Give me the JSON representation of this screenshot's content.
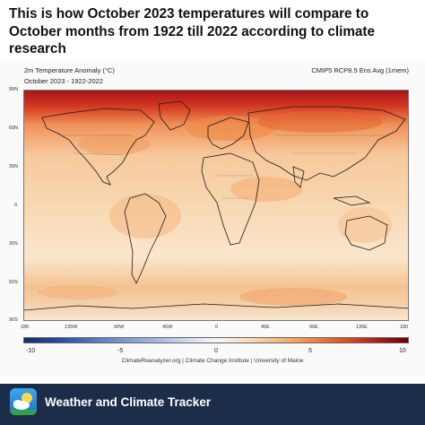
{
  "headline": "This is how October 2023 temperatures will compare to October months from 1922 till 2022 according to climate research",
  "map": {
    "title": "2m Temperature Anomaly (°C)",
    "subtitle": "October 2023 - 1922-2022",
    "model": "CMIP5 RCP8.5 Ens Avg (1mem)",
    "lat_labels": [
      "90N",
      "60N",
      "30N",
      "0",
      "30S",
      "60S",
      "90S"
    ],
    "lon_labels": [
      "180",
      "135W",
      "90W",
      "45W",
      "0",
      "45E",
      "90E",
      "135E",
      "180"
    ],
    "colorbar_labels": [
      "-10",
      "-5",
      "0",
      "5",
      "10"
    ],
    "credit": "ClimateReanalyzer.org | Climate Change Institute | University of Maine",
    "colors": {
      "cold_extreme": "#152c6f",
      "neutral": "#f4f4f4",
      "warm_light": "#f7c490",
      "warm_mid": "#e46a2d",
      "warm_extreme": "#8e0c13"
    }
  },
  "footer": {
    "app_name": "Weather and Climate Tracker",
    "icon": "weather-app-icon",
    "background": "#1c2d4a"
  }
}
